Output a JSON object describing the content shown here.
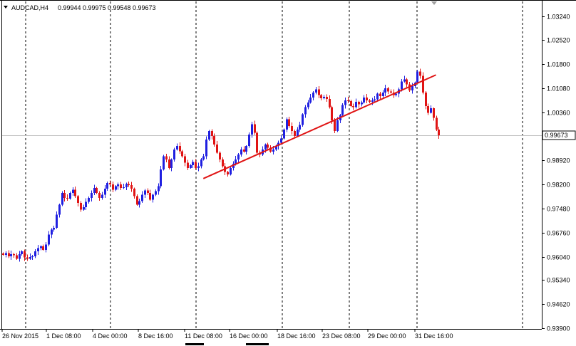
{
  "header": {
    "symbol_label": "AUDCAD,H4",
    "ohlc": [
      "0.99944",
      "0.99975",
      "0.99548",
      "0.99673"
    ]
  },
  "colors": {
    "bull": "#1f1fe0",
    "bear": "#e01414",
    "trendline": "#e01414",
    "grid": "#000000",
    "bid_line": "#c0c0c0",
    "axis": "#000000",
    "background": "#ffffff"
  },
  "chart_data": {
    "type": "candlestick",
    "symbol": "AUDCAD",
    "timeframe": "H4",
    "current_price": "0.99673",
    "ylim": [
      0.9388,
      1.0368
    ],
    "y_ticks": [
      "1.03240",
      "1.02520",
      "1.01800",
      "1.01080",
      "1.00360",
      "0.99640",
      "0.98920",
      "0.98200",
      "0.97480",
      "0.96760",
      "0.96040",
      "0.95340",
      "0.94620",
      "0.93900"
    ],
    "x_ticks": [
      "26 Nov 2015",
      "1 Dec 08:00",
      "4 Dec 00:00",
      "8 Dec 16:00",
      "11 Dec 08:00",
      "16 Dec 00:00",
      "18 Dec 16:00",
      "23 Dec 08:00",
      "29 Dec 00:00",
      "31 Dec 16:00"
    ],
    "grid": "vertical dashed",
    "closes": [
      0.961,
      0.9615,
      0.9605,
      0.9612,
      0.9608,
      0.9598,
      0.9612,
      0.962,
      0.9602,
      0.9598,
      0.9603,
      0.9605,
      0.962,
      0.963,
      0.9635,
      0.9625,
      0.964,
      0.967,
      0.9685,
      0.969,
      0.973,
      0.976,
      0.9795,
      0.978,
      0.9778,
      0.9795,
      0.9805,
      0.9785,
      0.9765,
      0.9745,
      0.9752,
      0.9768,
      0.978,
      0.9795,
      0.981,
      0.9795,
      0.978,
      0.979,
      0.9808,
      0.9825,
      0.982,
      0.9805,
      0.9815,
      0.982,
      0.981,
      0.9812,
      0.9822,
      0.9818,
      0.9808,
      0.9785,
      0.976,
      0.977,
      0.979,
      0.9802,
      0.9795,
      0.9775,
      0.979,
      0.98,
      0.9815,
      0.9865,
      0.9905,
      0.9895,
      0.987,
      0.9895,
      0.9925,
      0.9935,
      0.992,
      0.9905,
      0.9885,
      0.987,
      0.9878,
      0.9888,
      0.987,
      0.9875,
      0.9895,
      0.9905,
      0.9955,
      0.998,
      0.9965,
      0.994,
      0.9915,
      0.9895,
      0.9875,
      0.9858,
      0.985,
      0.987,
      0.9882,
      0.9895,
      0.991,
      0.9925,
      0.9918,
      0.9935,
      0.997,
      1.0,
      0.9975,
      0.9915,
      0.991,
      0.9925,
      0.994,
      0.993,
      0.9918,
      0.9925,
      0.9935,
      0.9945,
      0.9958,
      0.9985,
      1.0015,
      0.9995,
      0.998,
      0.9965,
      0.9985,
      0.9998,
      1.003,
      1.0052,
      1.0065,
      1.008,
      1.0095,
      1.0105,
      1.0088,
      1.0078,
      1.0082,
      1.0076,
      1.0052,
      1.0012,
      0.998,
      1.0012,
      1.0028,
      1.0058,
      1.0072,
      1.007,
      1.0055,
      1.0052,
      1.0068,
      1.006,
      1.0065,
      1.008,
      1.0072,
      1.0068,
      1.0072,
      1.0075,
      1.0092,
      1.0085,
      1.0095,
      1.0108,
      1.0098,
      1.0095,
      1.0088,
      1.0092,
      1.0105,
      1.0128,
      1.0135,
      1.012,
      1.0102,
      1.0115,
      1.0125,
      1.0158,
      1.0145,
      1.0095,
      1.0055,
      1.0035,
      1.0048,
      1.002,
      0.9985,
      0.9967
    ],
    "trendline": {
      "from": {
        "index": 75,
        "price": 0.9838
      },
      "to": {
        "index": 162,
        "price": 1.0148
      }
    },
    "x_tick_positions": [
      0,
      15,
      31,
      46,
      62,
      78,
      94,
      111,
      127,
      143
    ]
  }
}
